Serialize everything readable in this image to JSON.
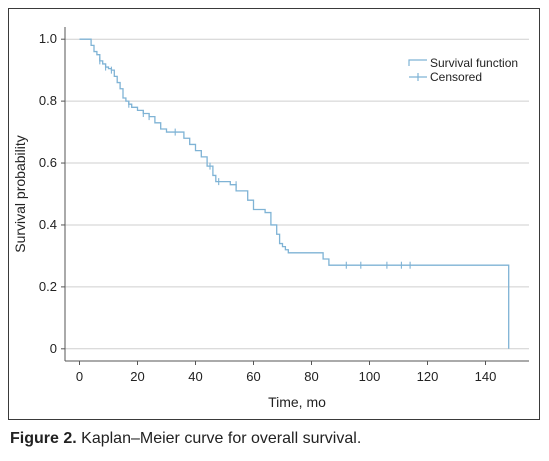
{
  "caption": {
    "label": "Figure 2.",
    "text": "Kaplan–Meier curve for overall survival."
  },
  "colors": {
    "curve": "#7fb3d5",
    "grid": "#cfcfcf",
    "axis": "#555555",
    "frame": "#3a3a3a"
  },
  "chart_data": {
    "type": "line",
    "title": "",
    "xlabel": "Time, mo",
    "ylabel": "Survival probability",
    "xlim": [
      -5,
      155
    ],
    "ylim": [
      -0.02,
      1.02
    ],
    "xticks": [
      0,
      20,
      40,
      60,
      80,
      100,
      120,
      140
    ],
    "yticks": [
      1.0,
      0.8,
      0.6,
      0.4,
      0.2,
      0
    ],
    "ytick_labels": [
      "1.0",
      "0.8",
      "0.6",
      "0.4",
      "0.2",
      "0"
    ],
    "grid": "horizontal",
    "legend_position": "top-right",
    "series": [
      {
        "name": "Survival function",
        "step": "post",
        "x": [
          0,
          4,
          5,
          6,
          7,
          8,
          9,
          10,
          11,
          12,
          13,
          14,
          15,
          16,
          17,
          18,
          20,
          22,
          24,
          26,
          28,
          30,
          33,
          36,
          38,
          40,
          42,
          44,
          46,
          47,
          48,
          52,
          54,
          56,
          58,
          60,
          62,
          64,
          66,
          68,
          69,
          70,
          71,
          72,
          74,
          76,
          80,
          84,
          86,
          88,
          148,
          148
        ],
        "y": [
          1.0,
          0.98,
          0.96,
          0.95,
          0.93,
          0.92,
          0.91,
          0.905,
          0.9,
          0.88,
          0.86,
          0.84,
          0.81,
          0.8,
          0.79,
          0.78,
          0.77,
          0.76,
          0.75,
          0.73,
          0.71,
          0.7,
          0.7,
          0.68,
          0.66,
          0.64,
          0.62,
          0.59,
          0.56,
          0.54,
          0.54,
          0.53,
          0.51,
          0.51,
          0.48,
          0.45,
          0.45,
          0.44,
          0.4,
          0.37,
          0.34,
          0.33,
          0.32,
          0.31,
          0.31,
          0.31,
          0.31,
          0.29,
          0.27,
          0.27,
          0.27,
          0.0
        ]
      }
    ],
    "censored": {
      "name": "Censored",
      "x": [
        7,
        9,
        11,
        17,
        22,
        24,
        33,
        45,
        48,
        54,
        92,
        97,
        106,
        111,
        114
      ],
      "y": [
        0.93,
        0.91,
        0.9,
        0.79,
        0.76,
        0.75,
        0.7,
        0.59,
        0.54,
        0.53,
        0.27,
        0.27,
        0.27,
        0.27,
        0.27
      ]
    }
  }
}
